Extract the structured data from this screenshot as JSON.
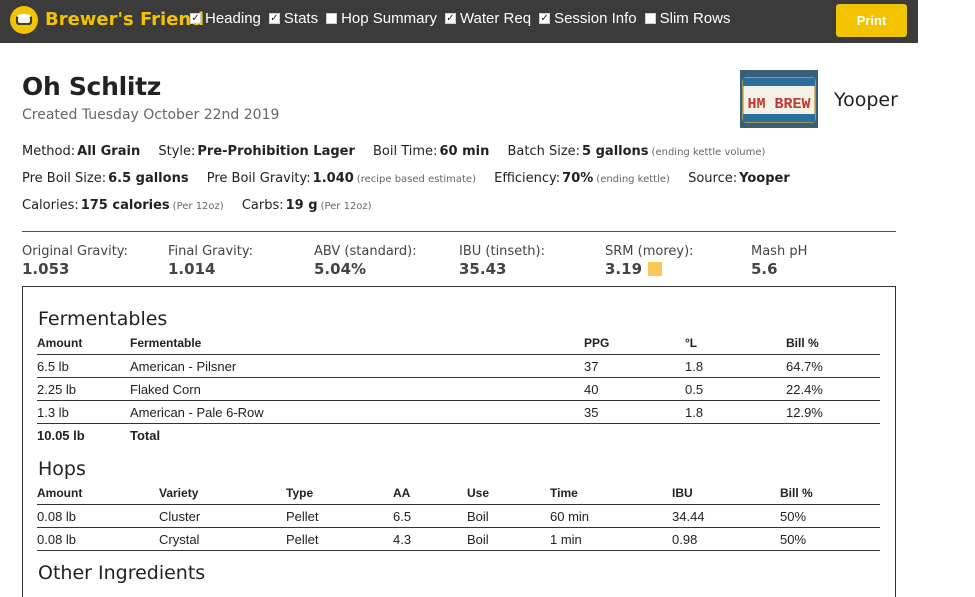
{
  "topbar": {
    "brand": "Brewer's Friend",
    "toggles": [
      {
        "label": "Heading",
        "checked": true
      },
      {
        "label": "Stats",
        "checked": true
      },
      {
        "label": "Hop Summary",
        "checked": false
      },
      {
        "label": "Water Req",
        "checked": true
      },
      {
        "label": "Session Info",
        "checked": true
      },
      {
        "label": "Slim Rows",
        "checked": false
      }
    ],
    "print_label": "Print"
  },
  "recipe": {
    "title": "Oh Schlitz",
    "created": "Created Tuesday October 22nd 2019",
    "brewer": "Yooper",
    "plate_text": "HM BREW"
  },
  "meta": {
    "method_k": "Method:",
    "method_v": "All Grain",
    "style_k": "Style:",
    "style_v": "Pre-Prohibition Lager",
    "boil_time_k": "Boil Time:",
    "boil_time_v": "60 min",
    "batch_k": "Batch Size:",
    "batch_v": "5 gallons",
    "batch_note": "(ending kettle volume)",
    "preboil_size_k": "Pre Boil Size:",
    "preboil_size_v": "6.5 gallons",
    "preboil_grav_k": "Pre Boil Gravity:",
    "preboil_grav_v": "1.040",
    "preboil_grav_note": "(recipe based estimate)",
    "eff_k": "Efficiency:",
    "eff_v": "70%",
    "eff_note": "(ending kettle)",
    "source_k": "Source:",
    "source_v": "Yooper",
    "cal_k": "Calories:",
    "cal_v": "175 calories",
    "cal_note": "(Per 12oz)",
    "carbs_k": "Carbs:",
    "carbs_v": "19 g",
    "carbs_note": "(Per 12oz)"
  },
  "stats": [
    {
      "label": "Original Gravity:",
      "value": "1.053"
    },
    {
      "label": "Final Gravity:",
      "value": "1.014"
    },
    {
      "label": "ABV (standard):",
      "value": "5.04%"
    },
    {
      "label": "IBU (tinseth):",
      "value": "35.43"
    },
    {
      "label": "SRM (morey):",
      "value": "3.19",
      "swatch": "#f8c95a"
    },
    {
      "label": "Mash pH",
      "value": "5.6"
    }
  ],
  "fermentables": {
    "title": "Fermentables",
    "headers": [
      "Amount",
      "Fermentable",
      "PPG",
      "°L",
      "Bill %"
    ],
    "rows": [
      [
        "6.5 lb",
        "American - Pilsner",
        "37",
        "1.8",
        "64.7%"
      ],
      [
        "2.25 lb",
        "Flaked Corn",
        "40",
        "0.5",
        "22.4%"
      ],
      [
        "1.3 lb",
        "American - Pale 6-Row",
        "35",
        "1.8",
        "12.9%"
      ]
    ],
    "total_amount": "10.05 lb",
    "total_label": "Total"
  },
  "hops": {
    "title": "Hops",
    "headers": [
      "Amount",
      "Variety",
      "Type",
      "AA",
      "Use",
      "Time",
      "IBU",
      "Bill %"
    ],
    "rows": [
      [
        "0.08 lb",
        "Cluster",
        "Pellet",
        "6.5",
        "Boil",
        "60 min",
        "34.44",
        "50%"
      ],
      [
        "0.08 lb",
        "Crystal",
        "Pellet",
        "4.3",
        "Boil",
        "1 min",
        "0.98",
        "50%"
      ]
    ]
  },
  "other": {
    "title": "Other Ingredients"
  }
}
